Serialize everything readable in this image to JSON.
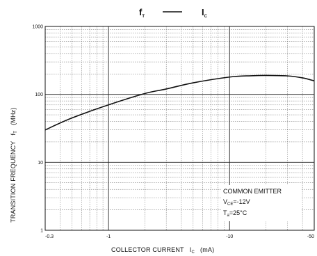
{
  "chart_data": {
    "type": "line",
    "title": {
      "left": "f",
      "left_sub": "T",
      "right": "I",
      "right_sub": "C"
    },
    "xlabel": {
      "main": "COLLECTOR CURRENT",
      "symbol": "I",
      "symbol_sub": "C",
      "unit": "(mA)"
    },
    "ylabel": {
      "main": "TRANSITION FREQUENCY",
      "symbol": "f",
      "symbol_sub": "T",
      "unit": "(MHz)"
    },
    "x_scale": "log",
    "y_scale": "log",
    "xlim": [
      0.3,
      50
    ],
    "ylim": [
      1,
      1000
    ],
    "x_ticks": [
      {
        "value": 0.3,
        "label": "-0.3"
      },
      {
        "value": 1,
        "label": "-1"
      },
      {
        "value": 10,
        "label": "-10"
      },
      {
        "value": 50,
        "label": "-50"
      }
    ],
    "y_ticks": [
      {
        "value": 1,
        "label": "1"
      },
      {
        "value": 10,
        "label": "10"
      },
      {
        "value": 100,
        "label": "100"
      },
      {
        "value": 1000,
        "label": "1000"
      }
    ],
    "grid": true,
    "series": [
      {
        "x": [
          0.3,
          0.5,
          1,
          2,
          3,
          5,
          10,
          15,
          20,
          30,
          40,
          50
        ],
        "y": [
          30,
          45,
          70,
          103,
          120,
          148,
          180,
          188,
          190,
          187,
          175,
          158
        ]
      }
    ],
    "annotation": {
      "line1": "COMMON EMITTER",
      "line2_main": "V",
      "line2_sub": "CE",
      "line2_rest": "=-12V",
      "line3_main": "T",
      "line3_sub": "a",
      "line3_rest": "=25°C"
    }
  }
}
